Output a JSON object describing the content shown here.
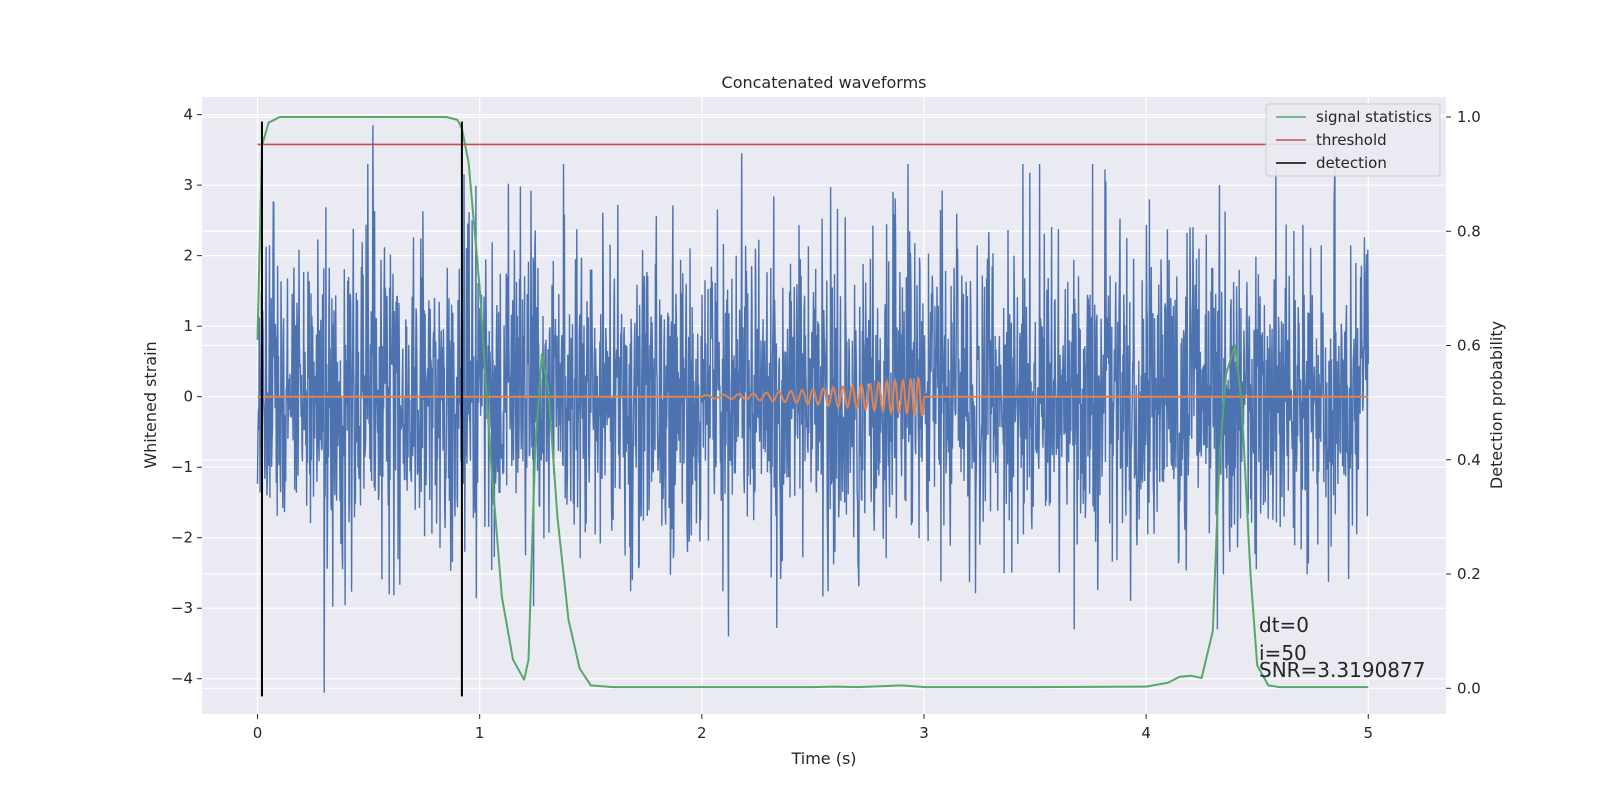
{
  "chart_data": {
    "type": "line",
    "title": "Concatenated waveforms",
    "xlabel": "Time (s)",
    "ylabel": "Whitened strain",
    "y2label": "Detection probability",
    "xlim": [
      -0.25,
      5.35
    ],
    "ylim": [
      -4.5,
      4.25
    ],
    "y2lim": [
      -0.045,
      1.035
    ],
    "xticks": [
      0,
      1,
      2,
      3,
      4,
      5
    ],
    "yticks": [
      -4,
      -3,
      -2,
      -1,
      0,
      1,
      2,
      3,
      4
    ],
    "y2ticks": [
      0.0,
      0.2,
      0.4,
      0.6,
      0.8,
      1.0
    ],
    "xtick_labels": [
      "0",
      "1",
      "2",
      "3",
      "4",
      "5"
    ],
    "ytick_labels": [
      "−4",
      "−3",
      "−2",
      "−1",
      "0",
      "1",
      "2",
      "3",
      "4"
    ],
    "y2tick_labels": [
      "0.0",
      "0.2",
      "0.4",
      "0.6",
      "0.8",
      "1.0"
    ],
    "grid": true,
    "legend_position": "top-right",
    "legend": [
      {
        "label": "signal statistics",
        "color": "#55a868"
      },
      {
        "label": "threshold",
        "color": "#c44e52"
      },
      {
        "label": "detection",
        "color": "#000000"
      }
    ],
    "series": [
      {
        "kind": "noise",
        "color": "#4c72b0",
        "x_range": [
          0,
          5
        ],
        "typical_amplitude": 1.2,
        "peak_values": [
          {
            "x": 0.3,
            "y": -4.2
          },
          {
            "x": 0.52,
            "y": 3.85
          },
          {
            "x": 2.12,
            "y": -3.4
          },
          {
            "x": 2.18,
            "y": 3.45
          },
          {
            "x": 4.85,
            "y": 3.5
          }
        ]
      },
      {
        "kind": "chirp",
        "color": "#dd8452",
        "x_range": [
          0,
          5
        ],
        "chirp_start": 2.0,
        "chirp_end": 3.0,
        "peak_amplitude": 0.28
      },
      {
        "name": "signal statistics",
        "axis": "right",
        "color": "#55a868",
        "x": [
          0.0,
          0.02,
          0.05,
          0.1,
          0.3,
          0.6,
          0.85,
          0.9,
          0.92,
          0.95,
          1.0,
          1.05,
          1.1,
          1.15,
          1.2,
          1.22,
          1.25,
          1.28,
          1.31,
          1.35,
          1.4,
          1.45,
          1.5,
          1.6,
          2.0,
          2.5,
          2.6,
          2.7,
          2.9,
          3.0,
          3.5,
          4.0,
          4.1,
          4.15,
          4.2,
          4.25,
          4.3,
          4.33,
          4.36,
          4.4,
          4.43,
          4.47,
          4.5,
          4.55,
          4.6,
          5.0
        ],
        "y": [
          0.61,
          0.95,
          0.99,
          1.0,
          1.0,
          1.0,
          1.0,
          0.995,
          0.98,
          0.92,
          0.7,
          0.4,
          0.16,
          0.05,
          0.015,
          0.05,
          0.42,
          0.585,
          0.52,
          0.3,
          0.12,
          0.035,
          0.005,
          0.002,
          0.002,
          0.002,
          0.003,
          0.002,
          0.005,
          0.002,
          0.002,
          0.003,
          0.01,
          0.02,
          0.022,
          0.018,
          0.1,
          0.4,
          0.55,
          0.6,
          0.5,
          0.2,
          0.04,
          0.005,
          0.002,
          0.002
        ]
      },
      {
        "name": "threshold",
        "axis": "right",
        "color": "#c44e52",
        "x": [
          0,
          5
        ],
        "y": [
          0.952,
          0.952
        ]
      },
      {
        "name": "detection",
        "axis": "left",
        "color": "#000000",
        "vlines": [
          0.02,
          0.92
        ],
        "y_span": [
          -4.25,
          3.9
        ]
      }
    ],
    "annotations": [
      "dt=0",
      "i=50",
      "SNR=3.3190877"
    ]
  }
}
